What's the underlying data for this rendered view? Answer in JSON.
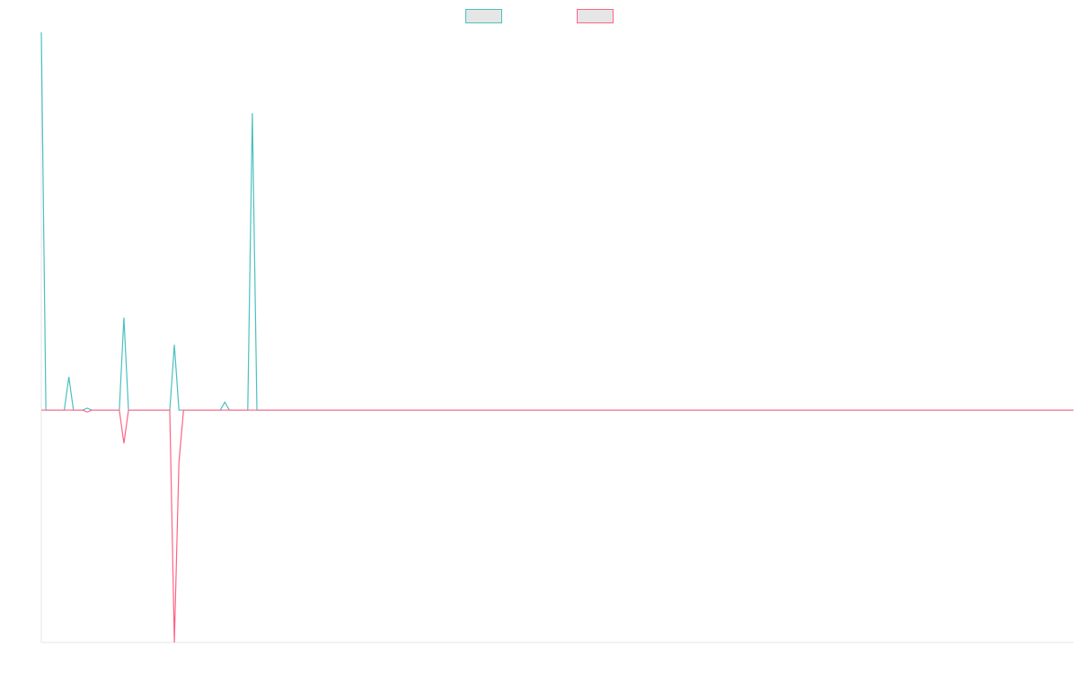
{
  "chart_data": {
    "type": "line",
    "xlim": [
      0,
      225
    ],
    "ylim": [
      -61.5,
      100
    ],
    "legend": "top",
    "series": [
      {
        "color": "#4bc0c0",
        "x": [
          0,
          1,
          5,
          6,
          7,
          9,
          10,
          11,
          17,
          18,
          19,
          28,
          29,
          30,
          39,
          40,
          41,
          45,
          46,
          47,
          225
        ],
        "values": [
          100,
          0,
          0,
          8.8,
          0,
          0,
          0.5,
          0,
          0,
          24.5,
          0,
          0,
          17.3,
          0,
          0,
          2.1,
          0,
          0,
          78.6,
          0,
          0
        ]
      },
      {
        "color": "#ff6384",
        "x": [
          0,
          9,
          10,
          11,
          17,
          18,
          19,
          28,
          29,
          30,
          31,
          225
        ],
        "values": [
          0,
          0,
          -0.5,
          0,
          0,
          -8.8,
          0,
          0,
          -61.5,
          -13.8,
          0,
          0
        ]
      }
    ]
  }
}
